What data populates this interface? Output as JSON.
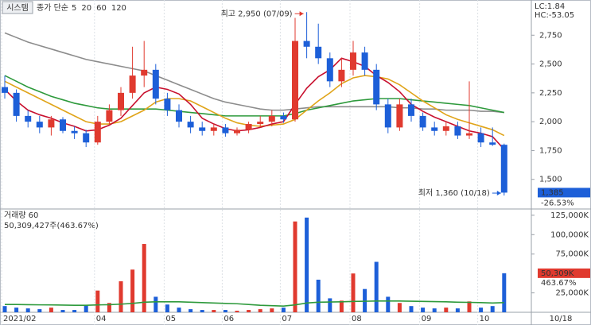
{
  "toolbar_button": "시스템",
  "chart_data": {
    "type": "candlestick",
    "legend_label": "종가 단순",
    "categories": [
      "2021/02",
      null,
      null,
      null,
      null,
      null,
      null,
      null,
      "04",
      null,
      null,
      null,
      null,
      null,
      "05",
      null,
      null,
      null,
      null,
      "06",
      null,
      null,
      null,
      null,
      "07",
      null,
      null,
      null,
      null,
      null,
      "08",
      null,
      null,
      null,
      null,
      null,
      "09",
      null,
      null,
      null,
      null,
      "10",
      null,
      null
    ],
    "last_date": "10/18",
    "open": [
      2300,
      2250,
      2050,
      2000,
      1950,
      2020,
      1920,
      1900,
      1820,
      2000,
      2100,
      2250,
      2400,
      2450,
      2200,
      2100,
      2000,
      1950,
      1920,
      1950,
      1900,
      1930,
      1980,
      2000,
      2050,
      2020,
      2700,
      2650,
      2550,
      2350,
      2450,
      2600,
      2450,
      2150,
      1950,
      2150,
      2050,
      1950,
      1920,
      1960,
      1880,
      1900,
      1820,
      1800
    ],
    "high": [
      2400,
      2280,
      2100,
      2050,
      2050,
      2040,
      1960,
      1930,
      2050,
      2150,
      2300,
      2650,
      2700,
      2500,
      2250,
      2150,
      2050,
      2000,
      1980,
      1980,
      1950,
      2000,
      2050,
      2100,
      2080,
      2900,
      2950,
      2850,
      2600,
      2550,
      2700,
      2650,
      2500,
      2200,
      2200,
      2200,
      2080,
      2000,
      2000,
      2000,
      2350,
      1950,
      1950,
      1810
    ],
    "low": [
      2200,
      2000,
      1950,
      1900,
      1880,
      1900,
      1850,
      1780,
      1800,
      1980,
      2050,
      2200,
      2300,
      2150,
      2050,
      1950,
      1900,
      1880,
      1880,
      1870,
      1880,
      1900,
      1950,
      1960,
      1990,
      2000,
      2550,
      2500,
      2300,
      2300,
      2400,
      2400,
      2100,
      1900,
      1920,
      2000,
      1920,
      1880,
      1880,
      1850,
      1850,
      1780,
      1790,
      1360
    ],
    "close": [
      2250,
      2050,
      2000,
      1950,
      2020,
      1920,
      1900,
      1820,
      2000,
      2100,
      2250,
      2400,
      2450,
      2200,
      2100,
      2000,
      1950,
      1920,
      1950,
      1900,
      1930,
      1980,
      2000,
      2050,
      2020,
      2700,
      2650,
      2550,
      2350,
      2450,
      2600,
      2450,
      2150,
      1950,
      2150,
      2050,
      1950,
      1920,
      1960,
      1880,
      1900,
      1820,
      1800,
      1385
    ],
    "up_color": "#e03a2f",
    "down_color": "#1d5fd8",
    "ylim": [
      1250,
      3000
    ],
    "yticks": [
      {
        "value": 1500,
        "label": "1,500"
      },
      {
        "value": 1750,
        "label": "1,750"
      },
      {
        "value": 2000,
        "label": "2,000"
      },
      {
        "value": 2250,
        "label": "2,250"
      },
      {
        "value": 2500,
        "label": "2,500"
      },
      {
        "value": 2750,
        "label": "2,750"
      }
    ],
    "moving_averages": [
      {
        "name": "5",
        "color": "#c8102e",
        "values": [
          2280,
          2180,
          2100,
          2060,
          2030,
          1990,
          1960,
          1920,
          1930,
          1970,
          2030,
          2140,
          2250,
          2300,
          2280,
          2240,
          2150,
          2030,
          1980,
          1940,
          1920,
          1930,
          1950,
          1980,
          2000,
          2150,
          2290,
          2390,
          2450,
          2550,
          2520,
          2480,
          2400,
          2340,
          2260,
          2150,
          2090,
          2040,
          2000,
          1960,
          1920,
          1900,
          1870,
          1760
        ]
      },
      {
        "name": "20",
        "color": "#e0a419",
        "values": [
          2350,
          2300,
          2250,
          2200,
          2150,
          2100,
          2050,
          2000,
          1980,
          1980,
          2000,
          2050,
          2100,
          2170,
          2200,
          2200,
          2180,
          2130,
          2080,
          2030,
          1990,
          1970,
          1960,
          1970,
          1980,
          2020,
          2100,
          2180,
          2250,
          2330,
          2380,
          2400,
          2390,
          2370,
          2320,
          2250,
          2180,
          2120,
          2060,
          2020,
          1990,
          1960,
          1930,
          1880
        ]
      },
      {
        "name": "60",
        "color": "#2e9a3c",
        "values": [
          2400,
          2350,
          2300,
          2260,
          2220,
          2190,
          2160,
          2140,
          2120,
          2110,
          2110,
          2110,
          2110,
          2110,
          2100,
          2090,
          2080,
          2070,
          2060,
          2050,
          2050,
          2050,
          2050,
          2050,
          2050,
          2070,
          2100,
          2120,
          2140,
          2160,
          2180,
          2190,
          2200,
          2200,
          2200,
          2190,
          2180,
          2170,
          2160,
          2150,
          2140,
          2120,
          2100,
          2080
        ]
      },
      {
        "name": "120",
        "color": "#8c8c8c",
        "values": [
          2770,
          2730,
          2690,
          2660,
          2630,
          2600,
          2570,
          2540,
          2520,
          2500,
          2480,
          2460,
          2440,
          2400,
          2360,
          2320,
          2280,
          2240,
          2200,
          2170,
          2150,
          2130,
          2110,
          2100,
          2100,
          2110,
          2120,
          2130,
          2130,
          2130,
          2130,
          2130,
          2130,
          2130,
          2120,
          2120,
          2110,
          2110,
          2100,
          2100,
          2100,
          2090,
          2090,
          2080
        ]
      }
    ],
    "indicators": {
      "lc": "LC:1.84",
      "hc": "HC:-53.05",
      "lc_color": "#e03a2f",
      "hc_color": "#1d5fd8"
    },
    "annotations": [
      {
        "text": "최고 2,950 (07/09)",
        "value": 2950,
        "color": "#e03a2f"
      },
      {
        "text": "최저 1,360 (10/18)",
        "value": 1360,
        "color": "#1d5fd8"
      }
    ],
    "last_price": {
      "value": 1385,
      "label": "1,385"
    },
    "change": {
      "value": -26.53,
      "label": "-26.53%"
    },
    "volume": {
      "title": "거래량",
      "ma_name": "60",
      "ma_color": "#2e9a3c",
      "summary": "50,309,427주(463.67%)",
      "values": [
        8000,
        6000,
        5000,
        4000,
        6000,
        3000,
        3000,
        9000,
        28000,
        12000,
        40000,
        55000,
        88000,
        20000,
        10000,
        6000,
        4000,
        3000,
        3000,
        3000,
        2000,
        3000,
        4000,
        5000,
        6000,
        117000,
        122000,
        42000,
        18000,
        15000,
        50000,
        30000,
        65000,
        20000,
        12000,
        8000,
        6000,
        5000,
        6000,
        5000,
        14000,
        6000,
        8000,
        50309
      ],
      "ma_values": [
        10000,
        10000,
        9800,
        9600,
        9500,
        9300,
        9000,
        9000,
        9500,
        9800,
        10500,
        11500,
        13000,
        13500,
        13500,
        13500,
        13000,
        12500,
        12000,
        11500,
        11000,
        10000,
        9000,
        8500,
        8000,
        9500,
        12000,
        13000,
        13200,
        13500,
        14000,
        14200,
        14500,
        14500,
        14500,
        14300,
        14000,
        13800,
        13500,
        13000,
        12800,
        12500,
        12000,
        12500
      ],
      "ylim": [
        0,
        130000
      ],
      "yticks": [
        {
          "value": 25000,
          "label": "25,000K"
        },
        {
          "value": 75000,
          "label": "75,000K"
        },
        {
          "value": 100000,
          "label": "100,000K"
        },
        {
          "value": 125000,
          "label": "125,000K"
        }
      ],
      "last": {
        "value": 50309,
        "label": "50,309K"
      },
      "ratio": {
        "value": 463.67,
        "label": "463.67%"
      }
    }
  }
}
